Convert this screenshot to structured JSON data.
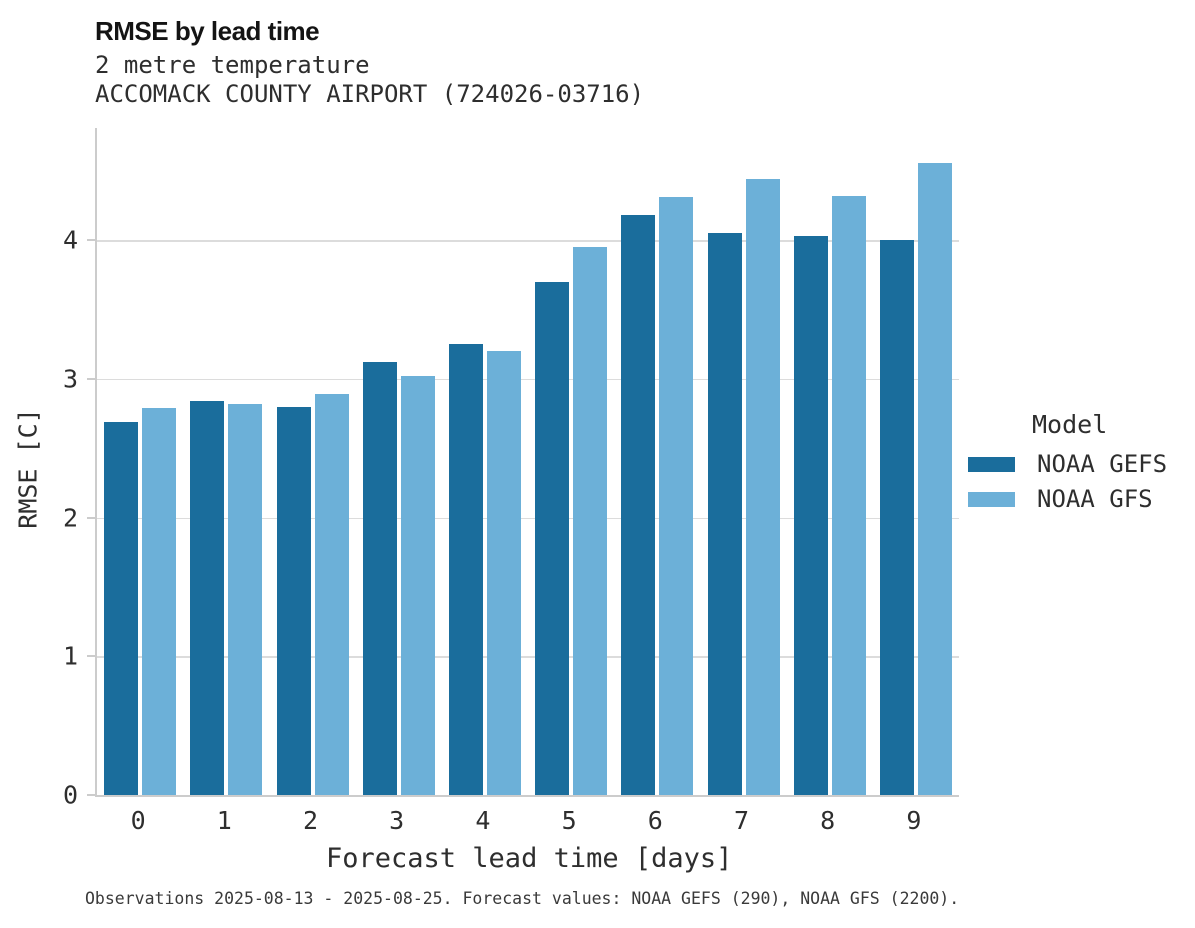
{
  "header": {
    "title": "RMSE by lead time",
    "subtitle": "2 metre temperature",
    "station": "ACCOMACK COUNTY AIRPORT (724026-03716)"
  },
  "chart_data": {
    "type": "bar",
    "title": "RMSE by lead time",
    "subtitle": "2 metre temperature",
    "station": "ACCOMACK COUNTY AIRPORT (724026-03716)",
    "categories": [
      "0",
      "1",
      "2",
      "3",
      "4",
      "5",
      "6",
      "7",
      "8",
      "9"
    ],
    "series": [
      {
        "name": "NOAA GEFS",
        "color": "#1a6d9c",
        "values": [
          2.69,
          2.84,
          2.8,
          3.12,
          3.25,
          3.7,
          4.18,
          4.05,
          4.03,
          4.0
        ]
      },
      {
        "name": "NOAA GFS",
        "color": "#6cb0d8",
        "values": [
          2.79,
          2.82,
          2.89,
          3.02,
          3.2,
          3.95,
          4.31,
          4.44,
          4.32,
          4.56
        ]
      }
    ],
    "xlabel": "Forecast lead time [days]",
    "ylabel": "RMSE [C]",
    "ylim": [
      0,
      4.81
    ],
    "yticks": [
      0,
      1,
      2,
      3,
      4
    ],
    "grid": true,
    "legend_title": "Model",
    "legend_position": "right"
  },
  "legend": {
    "title": "Model",
    "entries": [
      {
        "label": "NOAA GEFS",
        "color": "#1a6d9c"
      },
      {
        "label": "NOAA GFS",
        "color": "#6cb0d8"
      }
    ]
  },
  "caption": "Observations 2025-08-13 - 2025-08-25. Forecast values: NOAA GEFS (290), NOAA GFS (2200).",
  "colors": {
    "series_dark": "#1a6d9c",
    "series_light": "#6cb0d8",
    "gridline": "#dcdcdc",
    "spine": "#cccccc",
    "text": "#2e2e2e"
  }
}
